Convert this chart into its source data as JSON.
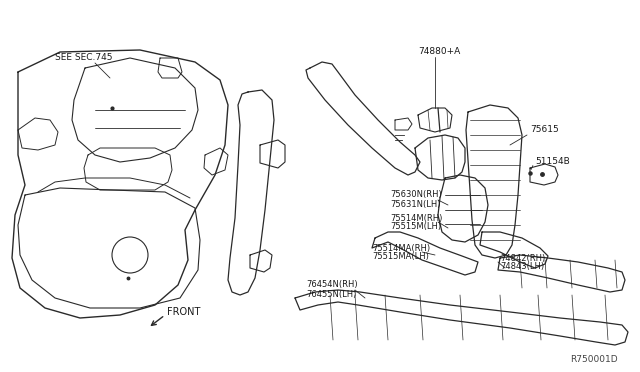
{
  "bg_color": "#ffffff",
  "line_color": "#2a2a2a",
  "text_color": "#1a1a1a",
  "diagram_ref": "R750001D",
  "figsize": [
    6.4,
    3.72
  ],
  "dpi": 100,
  "labels": {
    "see_sec": "SEE SEC.745",
    "front": "FRONT",
    "74880A": "74880+A",
    "75615": "75615",
    "51154B": "51154B",
    "75630N": "75630N(RH)",
    "75631N": "75631N(LH)",
    "75514M": "75514M(RH)",
    "75515M": "75515M(LH)",
    "75514MA": "75514MA(RH)",
    "75515MA": "75515MA(LH)",
    "74842": "74842(RH)",
    "74843": "74843(LH)",
    "76454N": "76454N(RH)",
    "76455N": "76455N(LH)"
  }
}
